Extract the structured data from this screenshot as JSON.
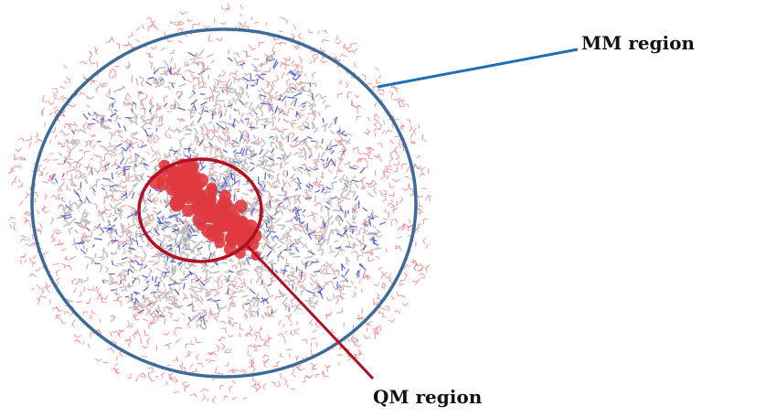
{
  "labels": {
    "mm": "MM region",
    "qm": "QM region"
  },
  "colors": {
    "mm_boundary": "#3d6a98",
    "mm_leader": "#1f6fb8",
    "qm_boundary": "#b01020",
    "qm_core": "#e03a40",
    "water": "#e8777d",
    "protein_grey": "#b9b9b9",
    "protein_blue": "#3a4ad0"
  }
}
